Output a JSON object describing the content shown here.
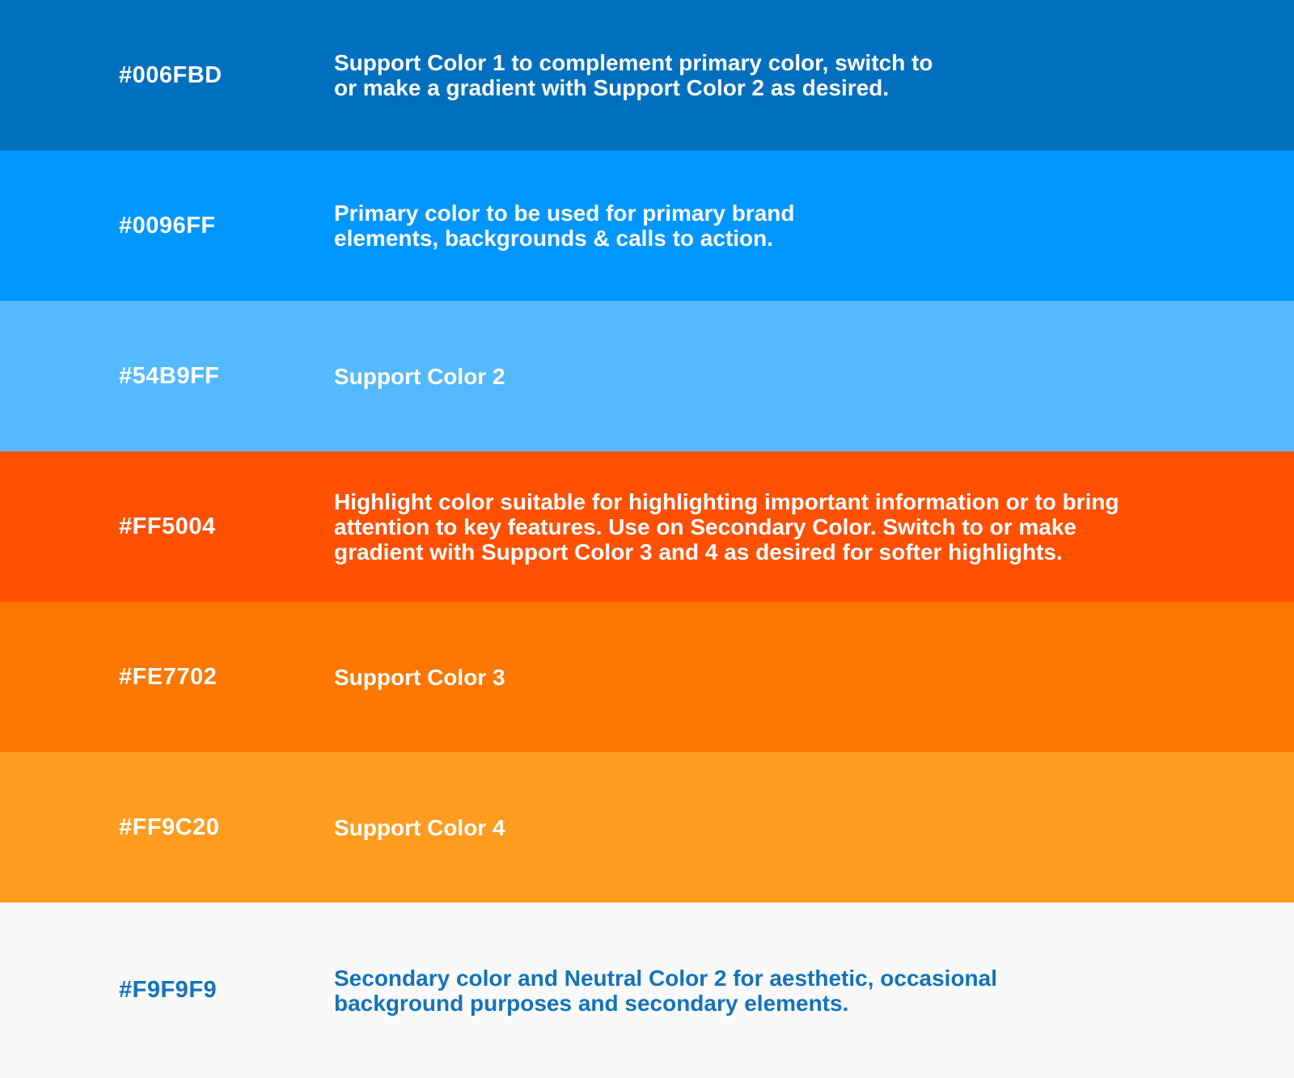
{
  "palette": {
    "rows": [
      {
        "hex": "#006FBD",
        "text_color": "#FFFFFF",
        "description": "Support Color 1 to complement primary color, switch to\nor make a gradient with Support Color 2 as desired."
      },
      {
        "hex": "#0096FF",
        "text_color": "#FFFFFF",
        "description": "Primary color to be used for primary brand\nelements, backgrounds & calls to action."
      },
      {
        "hex": "#54B9FF",
        "text_color": "#FFFFFF",
        "description": "Support Color 2"
      },
      {
        "hex": "#FF5004",
        "text_color": "#FFFFFF",
        "description": "Highlight color suitable for highlighting important information or to bring\nattention to key features. Use on Secondary Color. Switch to or make\ngradient with Support Color 3 and 4 as desired for softer highlights."
      },
      {
        "hex": "#FE7702",
        "text_color": "#FFFFFF",
        "description": "Support Color 3"
      },
      {
        "hex": "#FF9C20",
        "text_color": "#FFFFFF",
        "description": "Support Color 4"
      },
      {
        "hex": "#F9F9F9",
        "text_color": "#1273BA",
        "description": "Secondary color and Neutral Color 2 for aesthetic, occasional\nbackground purposes and secondary elements."
      }
    ]
  }
}
